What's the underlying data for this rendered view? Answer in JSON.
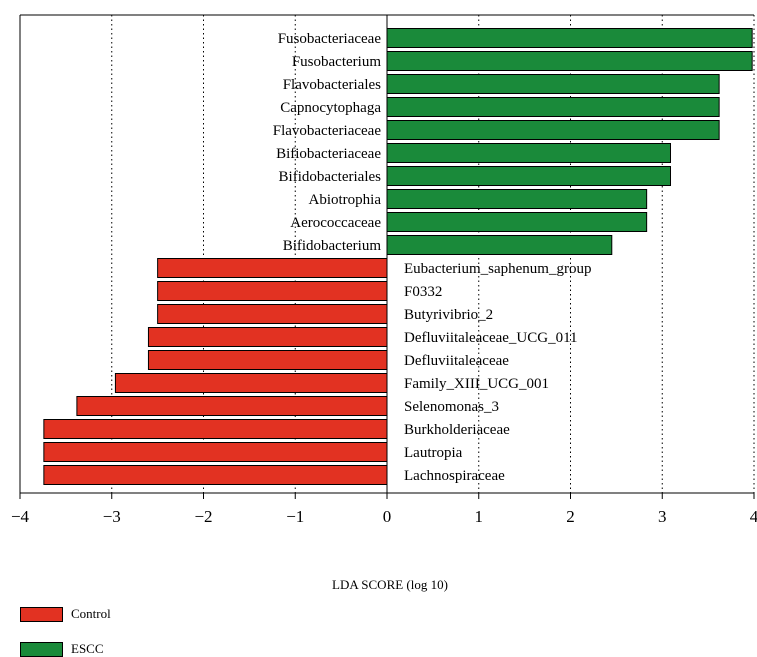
{
  "colors": {
    "control": "#e23222",
    "escc": "#1a8a3a",
    "axis": "#000000",
    "grid": "#000000"
  },
  "chart_data": {
    "type": "bar",
    "orientation": "horizontal",
    "xlabel": "LDA SCORE (log 10)",
    "xlim": [
      -4,
      4
    ],
    "xticks": [
      -4,
      -3,
      -2,
      -1,
      0,
      1,
      2,
      3,
      4
    ],
    "xtick_labels": [
      "−4",
      "−3",
      "−2",
      "−1",
      "0",
      "1",
      "2",
      "3",
      "4"
    ],
    "grid": "vertical dotted",
    "legend_position": "bottom-left",
    "series": [
      {
        "name": "Control",
        "color": "#e23222"
      },
      {
        "name": "ESCC",
        "color": "#1a8a3a"
      }
    ],
    "bars": [
      {
        "label": "Fusobacteriaceae",
        "value": 3.98,
        "group": "ESCC"
      },
      {
        "label": "Fusobacterium",
        "value": 3.98,
        "group": "ESCC"
      },
      {
        "label": "Flavobacteriales",
        "value": 3.62,
        "group": "ESCC"
      },
      {
        "label": "Capnocytophaga",
        "value": 3.62,
        "group": "ESCC"
      },
      {
        "label": "Flavobacteriaceae",
        "value": 3.62,
        "group": "ESCC"
      },
      {
        "label": "Bifiobacteriaceae",
        "value": 3.09,
        "group": "ESCC"
      },
      {
        "label": "Bifidobacteriales",
        "value": 3.09,
        "group": "ESCC"
      },
      {
        "label": "Abiotrophia",
        "value": 2.83,
        "group": "ESCC"
      },
      {
        "label": "Aerococcaceae",
        "value": 2.83,
        "group": "ESCC"
      },
      {
        "label": "Bifidobacterium",
        "value": 2.45,
        "group": "ESCC"
      },
      {
        "label": "Eubacterium_saphenum_group",
        "value": -2.5,
        "group": "Control"
      },
      {
        "label": "F0332",
        "value": -2.5,
        "group": "Control"
      },
      {
        "label": "Butyrivibrio_2",
        "value": -2.5,
        "group": "Control"
      },
      {
        "label": "Defluviitaleaceae_UCG_011",
        "value": -2.6,
        "group": "Control"
      },
      {
        "label": "Defluviitaleaceae",
        "value": -2.6,
        "group": "Control"
      },
      {
        "label": "Family_XIII_UCG_001",
        "value": -2.96,
        "group": "Control"
      },
      {
        "label": "Selenomonas_3",
        "value": -3.38,
        "group": "Control"
      },
      {
        "label": "Burkholderiaceae",
        "value": -3.74,
        "group": "Control"
      },
      {
        "label": "Lautropia",
        "value": -3.74,
        "group": "Control"
      },
      {
        "label": "Lachnospiraceae",
        "value": -3.74,
        "group": "Control"
      }
    ]
  }
}
